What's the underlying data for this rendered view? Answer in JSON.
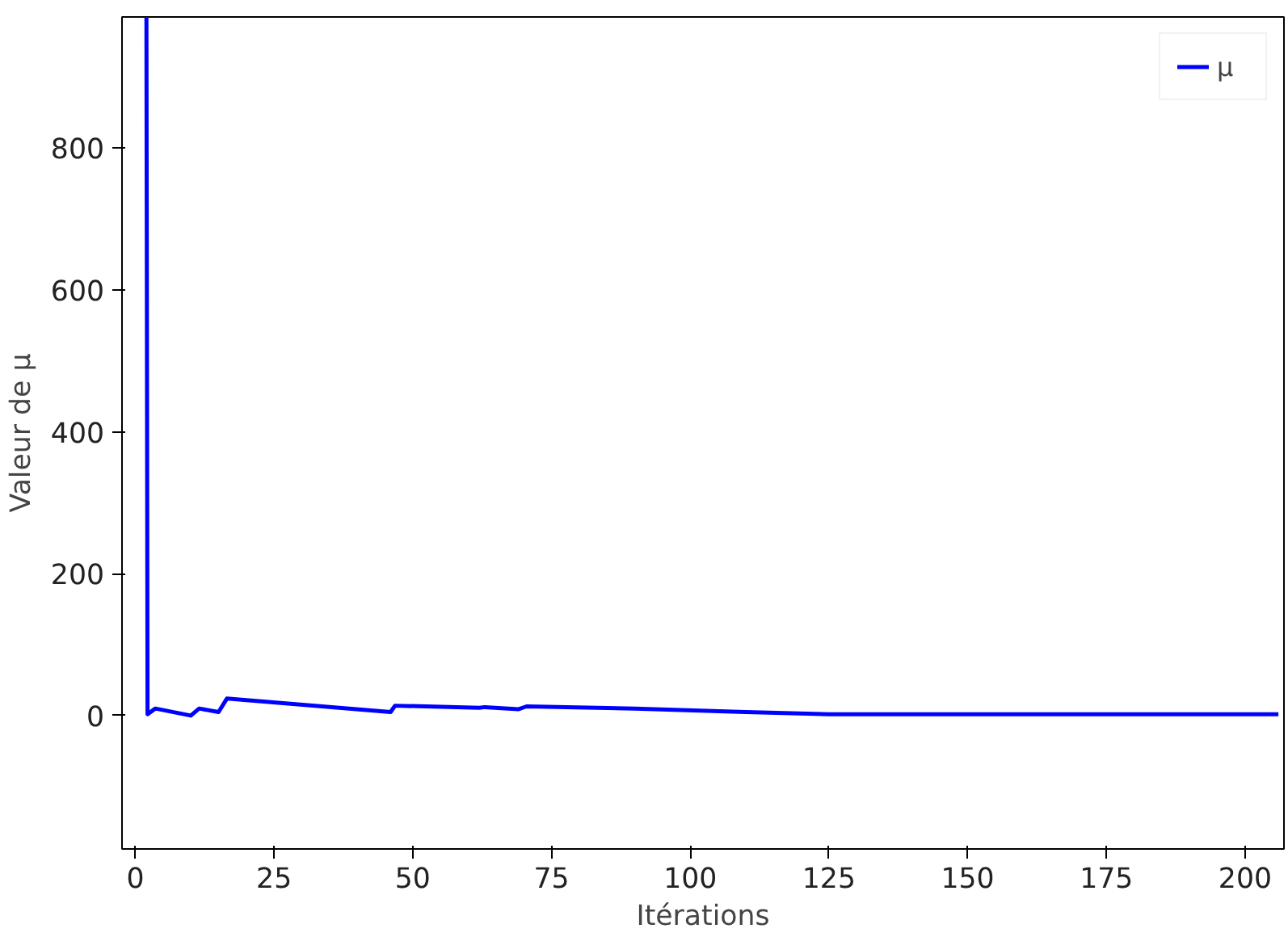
{
  "chart_data": {
    "type": "line",
    "xlabel": "Itérations",
    "ylabel": "Valeur de μ",
    "xlim": [
      -2.4,
      207
    ],
    "ylim": [
      -188,
      985
    ],
    "xticks": [
      0,
      25,
      50,
      75,
      100,
      125,
      150,
      175,
      200
    ],
    "yticks": [
      0,
      200,
      400,
      600,
      800
    ],
    "legend": "top right",
    "grid": false,
    "series": [
      {
        "name": "μ",
        "color": "#0000ff",
        "x": [
          2,
          2.2,
          3.6,
          10,
          11.5,
          15,
          16.5,
          46,
          46.8,
          62,
          63,
          69,
          70.5,
          90,
          110,
          125,
          150,
          206
        ],
        "values": [
          985,
          2,
          10,
          0,
          10,
          5,
          24,
          5,
          14,
          11,
          12,
          9,
          13,
          10,
          5,
          2,
          2,
          2
        ]
      }
    ]
  }
}
